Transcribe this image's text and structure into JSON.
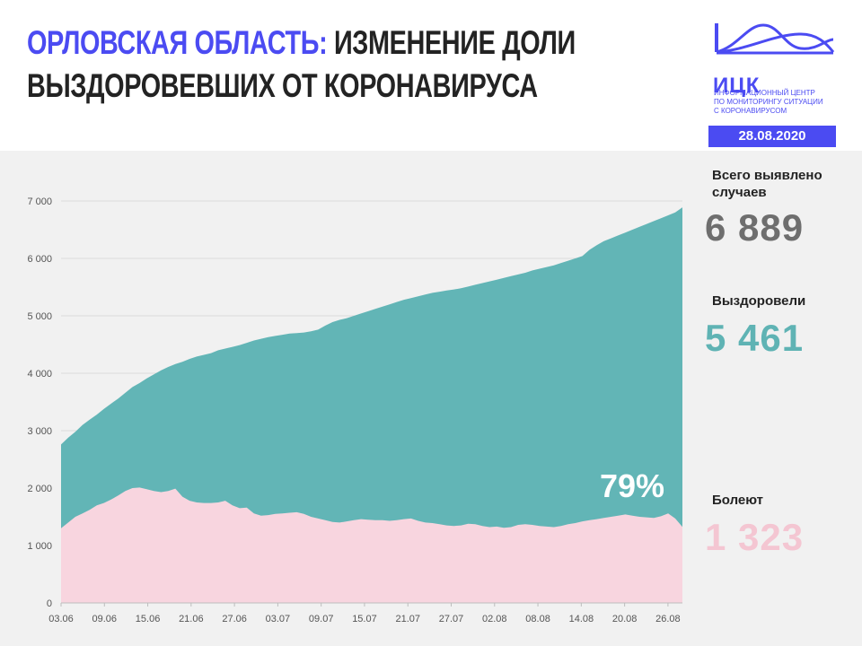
{
  "header": {
    "title_accent": "ОРЛОВСКАЯ ОБЛАСТЬ:",
    "title_rest_line1": " ИЗМЕНЕНИЕ ДОЛИ",
    "title_line2": "ВЫЗДОРОВЕВШИХ ОТ КОРОНАВИРУСА"
  },
  "logo": {
    "name": "ИЦК",
    "subtitle_lines": [
      "ИНФОРМАЦИОННЫЙ ЦЕНТР",
      "ПО МОНИТОРИНГУ СИТУАЦИИ",
      "С КОРОНАВИРУСОМ"
    ]
  },
  "date": "28.08.2020",
  "stats": {
    "total_label_line1": "Всего выявлено",
    "total_label_line2": "случаев",
    "total_value": "6 889",
    "recovered_label": "Выздоровели",
    "recovered_value": "5 461",
    "sick_label": "Болеют",
    "sick_value": "1 323",
    "recovered_share": "79%"
  },
  "colors": {
    "accent": "#4b4bf2",
    "recovered": "#62b5b6",
    "sick": "#f8d5df",
    "total_text": "#6e6e6e",
    "recovered_text": "#5fb3b4",
    "sick_text": "#f4c6d2",
    "background": "#f1f1f1"
  },
  "chart_data": {
    "type": "area",
    "x_tick_labels": [
      "03.06",
      "09.06",
      "15.06",
      "21.06",
      "27.06",
      "03.07",
      "09.07",
      "15.07",
      "21.07",
      "27.07",
      "02.08",
      "08.08",
      "14.08",
      "20.08",
      "26.08"
    ],
    "y_ticks": [
      0,
      1000,
      2000,
      3000,
      4000,
      5000,
      6000,
      7000
    ],
    "y_tick_labels": [
      "0",
      "1 000",
      "2 000",
      "3 000",
      "4 000",
      "5 000",
      "6 000",
      "7 000"
    ],
    "ylim": [
      0,
      7000
    ],
    "x_start": "03.06",
    "x_end": "28.08",
    "series": [
      {
        "name": "Выздоровели",
        "color": "#62b5b6",
        "top_values": [
          2760,
          2880,
          2980,
          3100,
          3190,
          3280,
          3380,
          3470,
          3560,
          3660,
          3760,
          3830,
          3910,
          3980,
          4050,
          4110,
          4160,
          4200,
          4250,
          4290,
          4320,
          4350,
          4400,
          4430,
          4460,
          4490,
          4530,
          4570,
          4600,
          4630,
          4650,
          4670,
          4690,
          4700,
          4710,
          4730,
          4760,
          4830,
          4890,
          4930,
          4960,
          5000,
          5040,
          5080,
          5120,
          5160,
          5200,
          5240,
          5280,
          5310,
          5340,
          5370,
          5400,
          5420,
          5440,
          5460,
          5480,
          5510,
          5540,
          5570,
          5600,
          5630,
          5660,
          5690,
          5720,
          5750,
          5790,
          5820,
          5850,
          5880,
          5920,
          5960,
          6000,
          6040,
          6150,
          6230,
          6300,
          6350,
          6400,
          6450,
          6500,
          6550,
          6600,
          6650,
          6700,
          6750,
          6800,
          6889
        ]
      },
      {
        "name": "Болеют",
        "color": "#f8d5df",
        "values": [
          1300,
          1400,
          1500,
          1560,
          1620,
          1700,
          1740,
          1800,
          1870,
          1950,
          2000,
          2010,
          1980,
          1950,
          1930,
          1950,
          1990,
          1850,
          1780,
          1750,
          1740,
          1740,
          1750,
          1780,
          1700,
          1650,
          1660,
          1560,
          1520,
          1530,
          1550,
          1560,
          1570,
          1580,
          1550,
          1500,
          1470,
          1440,
          1410,
          1400,
          1420,
          1440,
          1460,
          1450,
          1440,
          1440,
          1430,
          1440,
          1460,
          1470,
          1430,
          1400,
          1390,
          1370,
          1350,
          1340,
          1350,
          1380,
          1370,
          1340,
          1320,
          1330,
          1310,
          1320,
          1360,
          1370,
          1360,
          1340,
          1330,
          1320,
          1340,
          1370,
          1390,
          1420,
          1440,
          1460,
          1480,
          1500,
          1520,
          1540,
          1520,
          1500,
          1490,
          1480,
          1510,
          1560,
          1470,
          1323
        ]
      }
    ]
  }
}
